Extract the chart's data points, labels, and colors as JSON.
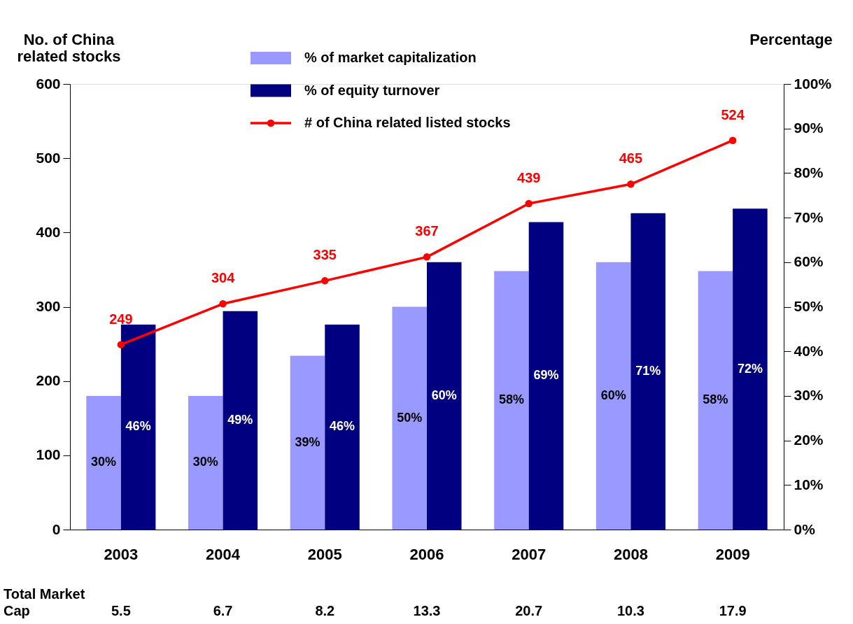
{
  "chart_data": {
    "type": "bar",
    "categories": [
      "2003",
      "2004",
      "2005",
      "2006",
      "2007",
      "2008",
      "2009"
    ],
    "ylabel": "No. of China related stocks",
    "y2label": "Percentage",
    "ylim": [
      0,
      600
    ],
    "yticks": [
      0,
      100,
      200,
      300,
      400,
      500,
      600
    ],
    "y2lim": [
      0,
      100
    ],
    "y2ticks": [
      {
        "value": 0,
        "label": "0%"
      },
      {
        "value": 10,
        "label": "10%"
      },
      {
        "value": 20,
        "label": "20%"
      },
      {
        "value": 30,
        "label": "30%"
      },
      {
        "value": 40,
        "label": "40%"
      },
      {
        "value": 50,
        "label": "50%"
      },
      {
        "value": 60,
        "label": "60%"
      },
      {
        "value": 70,
        "label": "70%"
      },
      {
        "value": 80,
        "label": "80%"
      },
      {
        "value": 90,
        "label": "90%"
      },
      {
        "value": 100,
        "label": "100%"
      }
    ],
    "series": [
      {
        "name": "% of market capitalization",
        "axis": "y2",
        "color": "#9999ff",
        "values": [
          30,
          30,
          39,
          50,
          58,
          60,
          58
        ],
        "value_labels": [
          "30%",
          "30%",
          "39%",
          "50%",
          "58%",
          "60%",
          "58%"
        ]
      },
      {
        "name": "% of equity turnover",
        "axis": "y2",
        "color": "#000080",
        "values": [
          46,
          49,
          46,
          60,
          69,
          71,
          72
        ],
        "value_labels": [
          "46%",
          "49%",
          "46%",
          "60%",
          "69%",
          "71%",
          "72%"
        ]
      },
      {
        "name": "# of China related listed stocks",
        "type": "line",
        "axis": "y",
        "color": "#ff0000",
        "values": [
          249,
          304,
          335,
          367,
          439,
          465,
          524
        ],
        "value_labels": [
          "249",
          "304",
          "335",
          "367",
          "439",
          "465",
          "524"
        ]
      }
    ],
    "marker": "circle",
    "line_style": "solid",
    "grid": false,
    "legend": "top",
    "annotations": [
      "Total Market Cap",
      "5.5",
      "6.7",
      "8.2",
      "13.3",
      "20.7",
      "10.3",
      "17.9"
    ]
  }
}
